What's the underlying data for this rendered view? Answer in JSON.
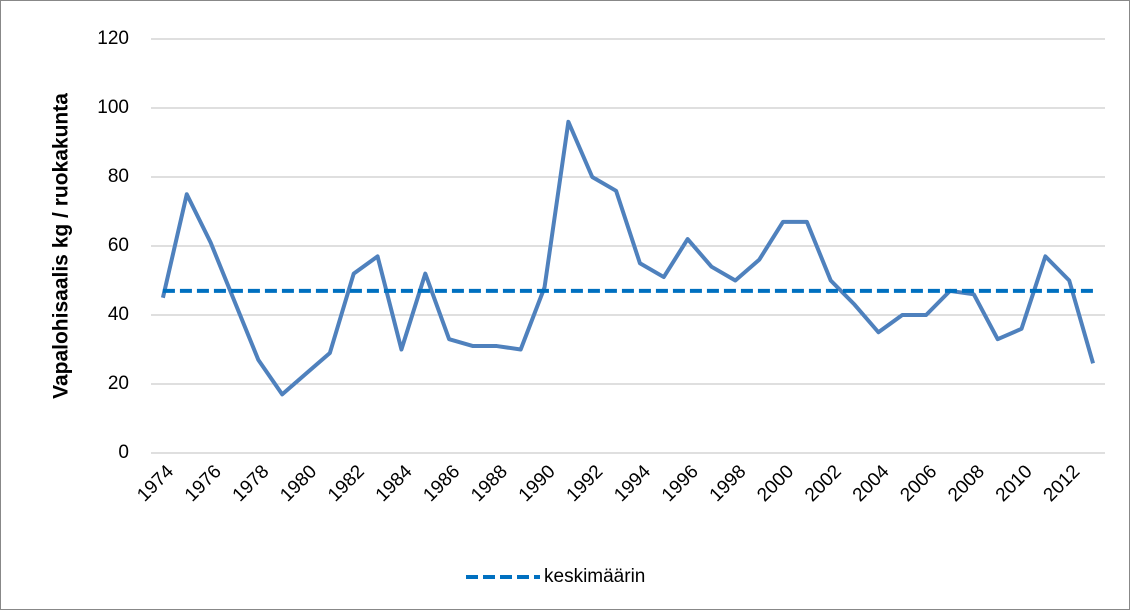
{
  "chart_data": {
    "type": "line",
    "y_label": "Vapalohisaalis kg / ruokakunta",
    "x": [
      1974,
      1975,
      1976,
      1977,
      1978,
      1979,
      1980,
      1981,
      1982,
      1983,
      1984,
      1985,
      1986,
      1987,
      1988,
      1989,
      1990,
      1991,
      1992,
      1993,
      1994,
      1995,
      1996,
      1997,
      1998,
      1999,
      2000,
      2001,
      2002,
      2003,
      2004,
      2005,
      2006,
      2007,
      2008,
      2009,
      2010,
      2011,
      2012,
      2013
    ],
    "series": [
      {
        "color": "#4f81bd",
        "values": [
          45,
          75,
          61,
          44,
          27,
          17,
          23,
          29,
          52,
          57,
          30,
          52,
          33,
          31,
          31,
          30,
          48,
          96,
          80,
          76,
          55,
          51,
          62,
          54,
          50,
          56,
          67,
          67,
          50,
          43,
          35,
          40,
          40,
          47,
          46,
          33,
          36,
          57,
          50,
          26
        ]
      },
      {
        "name": "keskimäärin",
        "color": "#0070c0",
        "dashed": true,
        "values": [
          47,
          47,
          47,
          47,
          47,
          47,
          47,
          47,
          47,
          47,
          47,
          47,
          47,
          47,
          47,
          47,
          47,
          47,
          47,
          47,
          47,
          47,
          47,
          47,
          47,
          47,
          47,
          47,
          47,
          47,
          47,
          47,
          47,
          47,
          47,
          47,
          47,
          47,
          47,
          47
        ]
      }
    ],
    "xlim": [
      1973.5,
      2013.5
    ],
    "xticks": [
      1974,
      1976,
      1978,
      1980,
      1982,
      1984,
      1986,
      1988,
      1990,
      1992,
      1994,
      1996,
      1998,
      2000,
      2002,
      2004,
      2006,
      2008,
      2010,
      2012
    ],
    "ylim": [
      0,
      120
    ],
    "yticks": [
      0,
      20,
      40,
      60,
      80,
      100,
      120
    ],
    "grid": true,
    "legend": "bottom"
  }
}
